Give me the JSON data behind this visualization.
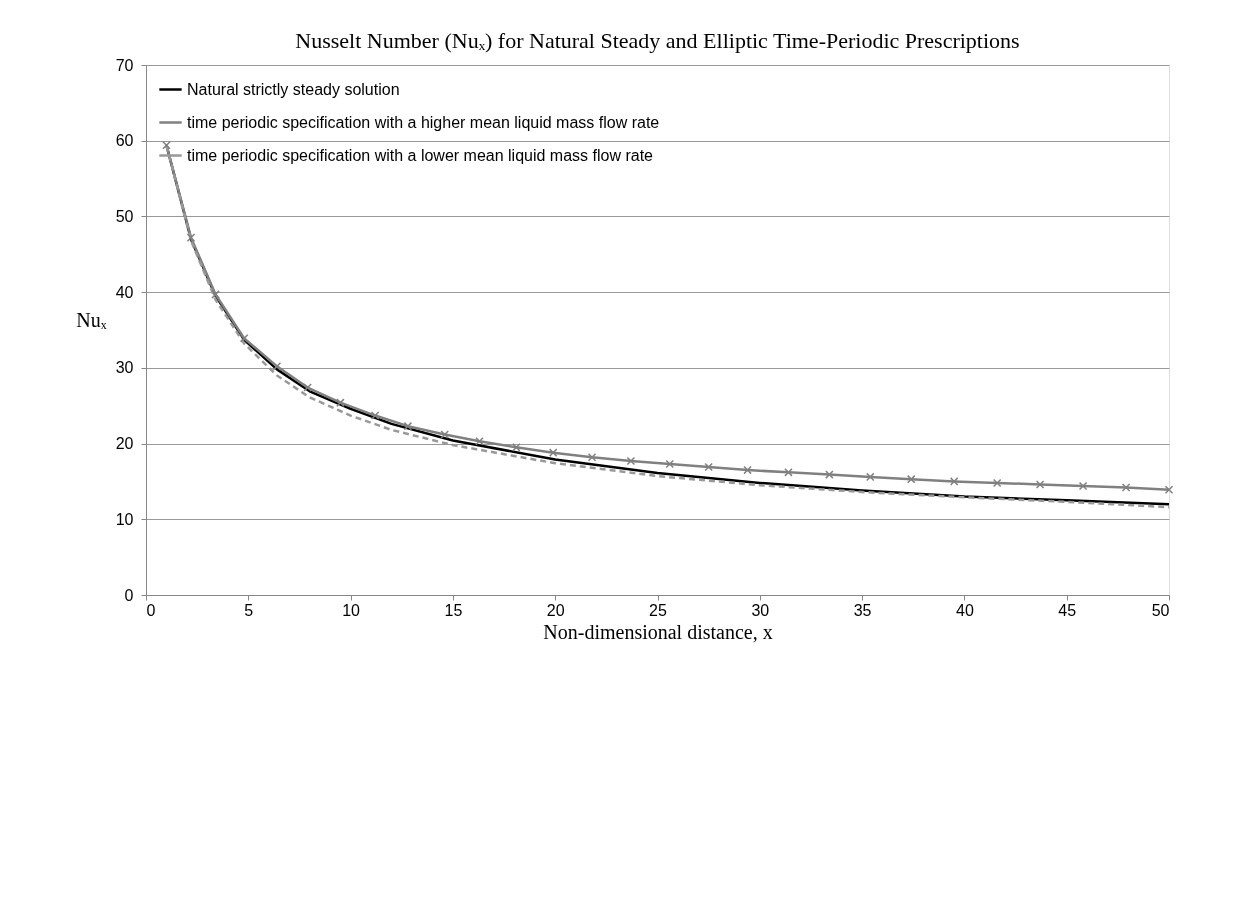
{
  "chart_data": {
    "type": "line",
    "title": "Nusselt Number (Nuₓ) for Natural Steady and Elliptic Time-Periodic Prescriptions",
    "xlabel": "Non-dimensional distance, x",
    "ylabel": "Nuₓ",
    "xlim": [
      0,
      50
    ],
    "xticks": [
      0,
      5,
      10,
      15,
      20,
      25,
      30,
      35,
      40,
      45,
      50
    ],
    "ylim": [
      0,
      70
    ],
    "yticks": [
      0,
      10,
      20,
      30,
      40,
      50,
      60,
      70
    ],
    "grid": "y",
    "legend": "top left",
    "series": [
      {
        "name": "Natural strictly steady solution",
        "color": "#000000",
        "line_style": "solid",
        "marker": "none",
        "x": [
          1,
          2.2,
          3.4,
          4.8,
          6.4,
          8,
          10,
          12,
          15,
          20,
          25,
          30,
          35,
          40,
          45,
          50
        ],
        "values": [
          59.4,
          47,
          39.5,
          33.7,
          29.8,
          26.9,
          24.6,
          22.6,
          20.4,
          17.9,
          16.1,
          14.8,
          13.8,
          13.0,
          12.5,
          12.0
        ]
      },
      {
        "name": "time periodic specification with a higher mean liquid mass flow rate",
        "color": "#808080",
        "line_style": "solid",
        "marker": "cross",
        "x": [
          1,
          2.2,
          3.4,
          4.8,
          6.4,
          7.9,
          9.5,
          11.2,
          12.8,
          14.6,
          16.3,
          18.1,
          19.9,
          21.8,
          23.7,
          25.6,
          27.5,
          29.4,
          31.4,
          33.4,
          35.4,
          37.4,
          39.5,
          41.6,
          43.7,
          45.8,
          47.9,
          50
        ],
        "values": [
          59.4,
          47.2,
          39.7,
          33.9,
          30.2,
          27.4,
          25.4,
          23.7,
          22.3,
          21.2,
          20.3,
          19.5,
          18.8,
          18.2,
          17.7,
          17.3,
          16.9,
          16.5,
          16.2,
          15.9,
          15.6,
          15.3,
          15.0,
          14.8,
          14.6,
          14.4,
          14.2,
          13.9
        ]
      },
      {
        "name": "time periodic specification with a lower mean liquid mass flow rate",
        "color": "#999999",
        "line_style": "dashed",
        "marker": "none",
        "x": [
          1,
          2.2,
          3.4,
          4.8,
          6.4,
          8,
          10,
          12,
          15,
          20,
          25,
          30,
          35,
          40,
          45,
          50
        ],
        "values": [
          59.4,
          46.8,
          39.0,
          33.2,
          29.0,
          26.1,
          23.7,
          21.8,
          19.8,
          17.4,
          15.7,
          14.5,
          13.6,
          12.9,
          12.3,
          11.6
        ]
      }
    ]
  }
}
